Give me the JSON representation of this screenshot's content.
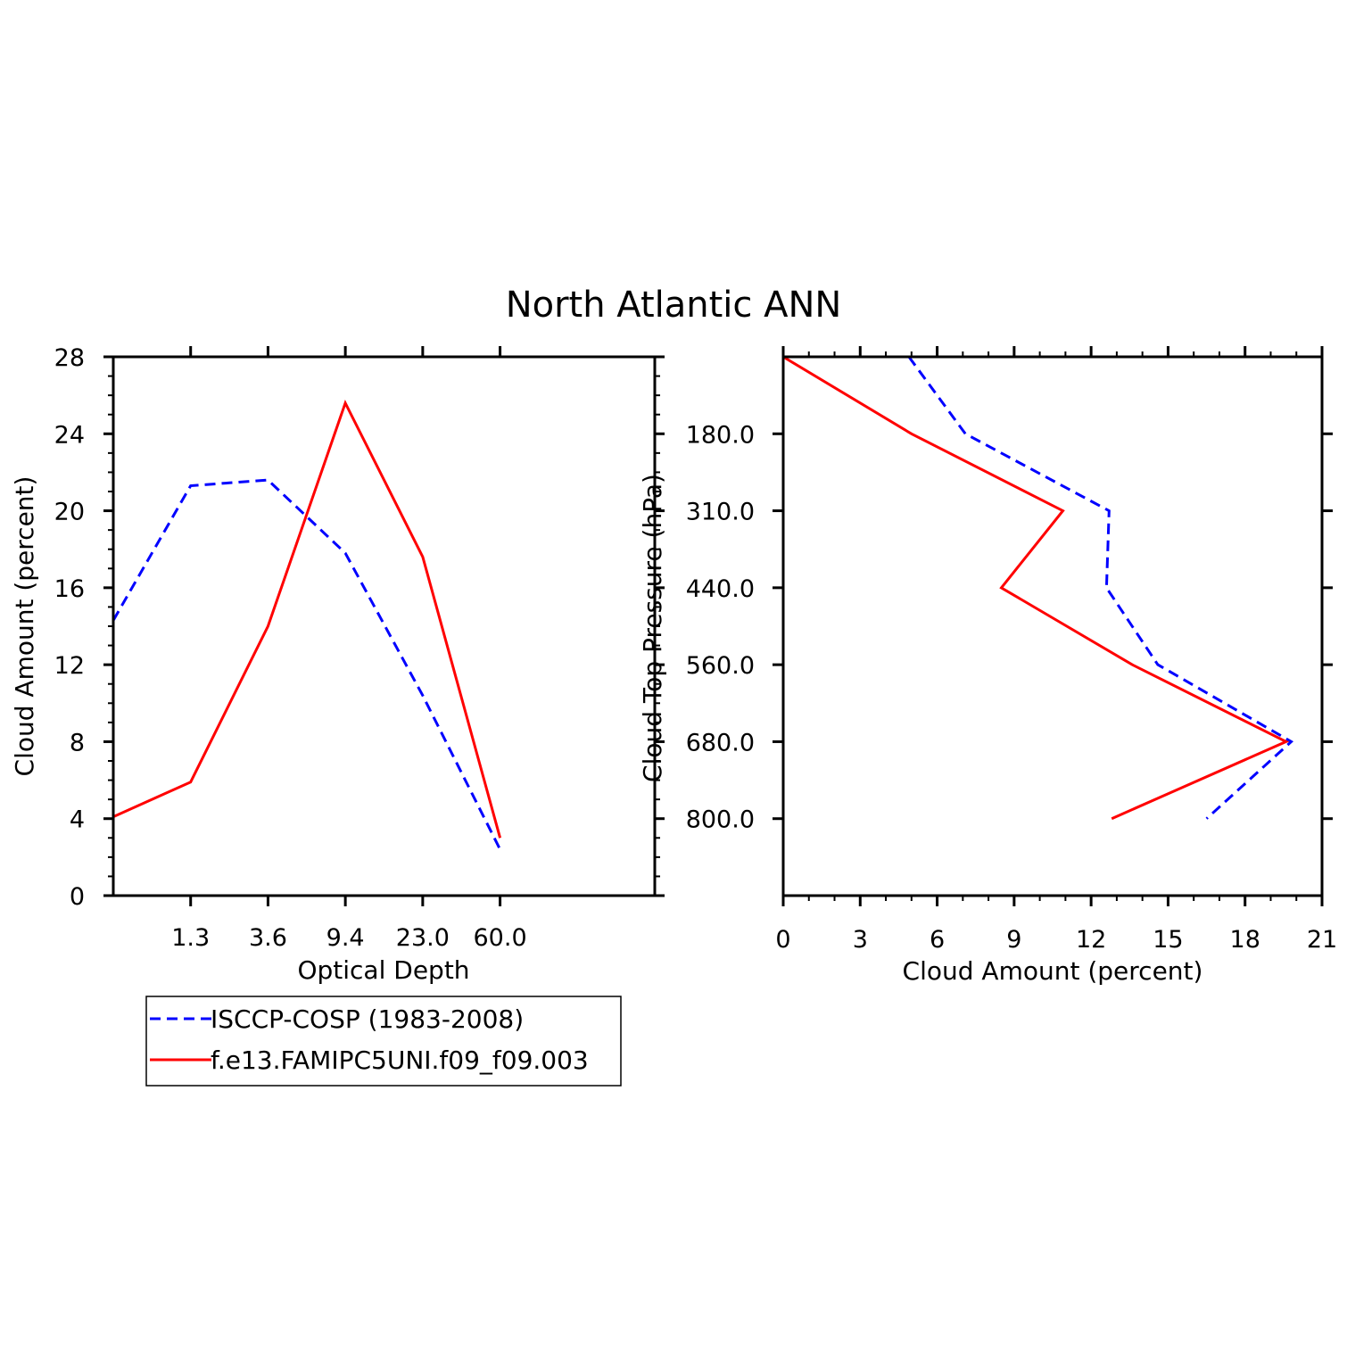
{
  "title": "North Atlantic ANN",
  "chart_data": [
    {
      "type": "line",
      "xlabel": "Optical Depth",
      "ylabel": "Cloud Amount (percent)",
      "x_tick_labels": [
        "1.3",
        "3.6",
        "9.4",
        "23.0",
        "60.0"
      ],
      "x_bins": 7,
      "y_ticks": [
        0,
        4,
        8,
        12,
        16,
        20,
        24,
        28
      ],
      "ylim": [
        0,
        28
      ],
      "series": [
        {
          "name": "ISCCP-COSP (1983-2008)",
          "color": "#0000ff",
          "dash": true,
          "x": [
            0,
            1,
            2,
            3,
            4,
            5
          ],
          "values": [
            14.3,
            21.3,
            21.6,
            17.8,
            10.4,
            2.4
          ]
        },
        {
          "name": "f.e13.FAMIPC5UNI.f09_f09.003",
          "color": "#ff0000",
          "dash": false,
          "x": [
            0,
            1,
            2,
            3,
            4,
            5
          ],
          "values": [
            4.1,
            5.9,
            14.0,
            25.6,
            17.6,
            3.0
          ]
        }
      ]
    },
    {
      "type": "line",
      "orientation": "horizontal",
      "xlabel": "Cloud Amount (percent)",
      "ylabel": "Cloud Top Pressure (hPa)",
      "x_ticks": [
        0,
        3,
        6,
        9,
        12,
        15,
        18,
        21
      ],
      "xlim": [
        0,
        21
      ],
      "y_tick_labels": [
        "180.0",
        "310.0",
        "440.0",
        "560.0",
        "680.0",
        "800.0"
      ],
      "y_bins": 7,
      "series": [
        {
          "name": "ISCCP-COSP (1983-2008)",
          "color": "#0000ff",
          "dash": true,
          "level": [
            0,
            1,
            2,
            3,
            4,
            5,
            6
          ],
          "values": [
            4.9,
            7.1,
            12.7,
            12.6,
            14.6,
            19.8,
            16.5
          ]
        },
        {
          "name": "f.e13.FAMIPC5UNI.f09_f09.003",
          "color": "#ff0000",
          "dash": false,
          "level": [
            0,
            1,
            2,
            3,
            4,
            5,
            6
          ],
          "values": [
            0,
            5.0,
            10.9,
            8.5,
            13.6,
            19.6,
            12.8
          ]
        }
      ]
    }
  ],
  "legend": [
    {
      "label": "ISCCP-COSP (1983-2008)",
      "color": "#0000ff",
      "dash": true
    },
    {
      "label": "f.e13.FAMIPC5UNI.f09_f09.003",
      "color": "#ff0000",
      "dash": false
    }
  ]
}
